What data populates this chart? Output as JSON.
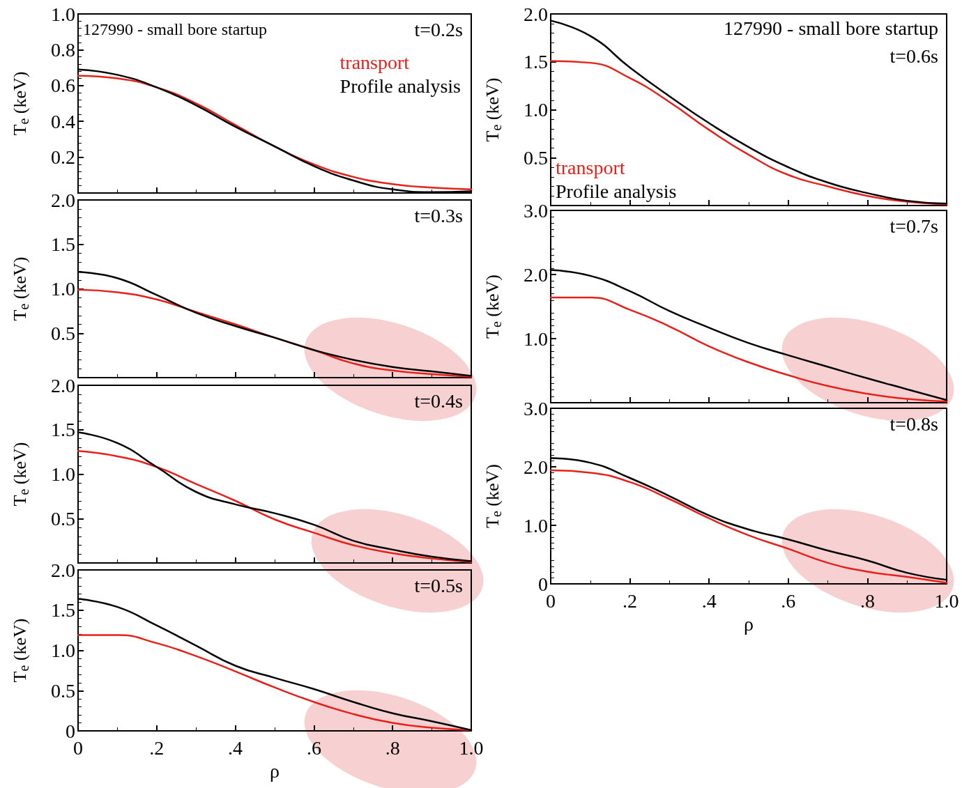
{
  "chart_data": [
    {
      "type": "line",
      "ylabel": "T$_{e}$ (keV)",
      "annotations": [
        "127990 - small bore startup",
        "t=0.2s"
      ],
      "legend": "top right",
      "tick_labels": "y",
      "xlim": [
        0,
        1
      ],
      "ylim": [
        0,
        1
      ],
      "yticks": [
        0.2,
        0.4,
        0.6,
        0.8,
        {
          "value": 1,
          "label": "1.0"
        }
      ],
      "x": [
        0,
        0.1,
        0.2,
        0.3,
        0.4,
        0.5,
        0.6,
        0.7,
        0.8,
        0.9,
        1.0
      ],
      "series": [
        {
          "name": "transport",
          "color": "#e8201a",
          "values": [
            0.655,
            0.64,
            0.59,
            0.5,
            0.38,
            0.26,
            0.16,
            0.09,
            0.05,
            0.03,
            0.02
          ]
        },
        {
          "name": "Profile analysis",
          "color": "#000000",
          "values": [
            0.69,
            0.66,
            0.59,
            0.49,
            0.37,
            0.26,
            0.15,
            0.07,
            0.02,
            0.005,
            0.01
          ]
        }
      ]
    },
    {
      "type": "line",
      "ylabel": "T$_{e}$ (keV)",
      "annotations": [
        "t=0.3s"
      ],
      "tick_labels": "y",
      "xlim": [
        0,
        1
      ],
      "ylim": [
        0,
        2
      ],
      "yticks": [
        0.5,
        {
          "value": 1,
          "label": "1.0"
        },
        1.5,
        {
          "value": 2,
          "label": "2.0"
        }
      ],
      "x": [
        0,
        0.1,
        0.2,
        0.3,
        0.4,
        0.5,
        0.6,
        0.7,
        0.8,
        0.9,
        1.0
      ],
      "series": [
        {
          "color": "#e8201a",
          "values": [
            0.99,
            0.96,
            0.88,
            0.74,
            0.6,
            0.45,
            0.31,
            0.16,
            0.08,
            0.04,
            0.01
          ]
        },
        {
          "color": "#000000",
          "values": [
            1.19,
            1.12,
            0.93,
            0.73,
            0.58,
            0.45,
            0.31,
            0.2,
            0.12,
            0.07,
            0.02
          ]
        }
      ]
    },
    {
      "type": "line",
      "ylabel": "T$_{e}$ (keV)",
      "annotations": [
        "t=0.4s"
      ],
      "tick_labels": "y",
      "xlim": [
        0,
        1
      ],
      "ylim": [
        0,
        2
      ],
      "yticks": [
        0.5,
        {
          "value": 1,
          "label": "1.0"
        },
        1.5,
        {
          "value": 2,
          "label": "2.0"
        }
      ],
      "x": [
        0,
        0.1,
        0.2,
        0.3,
        0.4,
        0.5,
        0.6,
        0.7,
        0.8,
        0.9,
        1.0
      ],
      "series": [
        {
          "color": "#e8201a",
          "values": [
            1.26,
            1.2,
            1.08,
            0.89,
            0.7,
            0.49,
            0.34,
            0.2,
            0.11,
            0.05,
            0.01
          ]
        },
        {
          "color": "#000000",
          "values": [
            1.47,
            1.35,
            1.08,
            0.8,
            0.66,
            0.56,
            0.43,
            0.25,
            0.15,
            0.07,
            0.02
          ]
        }
      ]
    },
    {
      "type": "line",
      "xlabel": "ρ",
      "ylabel": "T$_{e}$ (keV)",
      "annotations": [
        "t=0.5s"
      ],
      "xlim": [
        0,
        1
      ],
      "xticks": [
        0,
        {
          "value": 0.2,
          "label": ".2"
        },
        {
          "value": 0.4,
          "label": ".4"
        },
        {
          "value": 0.6,
          "label": ".6"
        },
        {
          "value": 0.8,
          "label": ".8"
        },
        {
          "value": 1,
          "label": "1.0"
        }
      ],
      "ylim": [
        0,
        2
      ],
      "yticks": [
        0,
        0.5,
        {
          "value": 1,
          "label": "1.0"
        },
        1.5,
        {
          "value": 2,
          "label": "2.0"
        }
      ],
      "x": [
        0,
        0.1,
        0.2,
        0.3,
        0.4,
        0.5,
        0.6,
        0.7,
        0.8,
        0.9,
        1.0
      ],
      "series": [
        {
          "color": "#e8201a",
          "values": [
            1.19,
            1.19,
            1.09,
            0.93,
            0.74,
            0.54,
            0.36,
            0.21,
            0.1,
            0.04,
            0.01
          ]
        },
        {
          "color": "#000000",
          "values": [
            1.64,
            1.54,
            1.31,
            1.06,
            0.81,
            0.66,
            0.52,
            0.36,
            0.22,
            0.12,
            0.01
          ]
        }
      ]
    },
    {
      "type": "line",
      "ylabel": "T$_{e}$ (keV)",
      "annotations": [
        "127990 - small bore startup",
        "t=0.6s"
      ],
      "legend": "bottom left",
      "tick_labels": "y",
      "xlim": [
        0,
        1
      ],
      "ylim": [
        0,
        2
      ],
      "yticks": [
        0.5,
        {
          "value": 1,
          "label": "1.0"
        },
        1.5,
        {
          "value": 2,
          "label": "2.0"
        }
      ],
      "x": [
        0,
        0.1,
        0.2,
        0.3,
        0.4,
        0.5,
        0.6,
        0.7,
        0.8,
        0.9,
        1.0
      ],
      "series": [
        {
          "name": "transport",
          "color": "#e8201a",
          "values": [
            1.51,
            1.49,
            1.33,
            1.08,
            0.79,
            0.53,
            0.32,
            0.2,
            0.1,
            0.04,
            0.01
          ]
        },
        {
          "name": "Profile analysis",
          "color": "#000000",
          "values": [
            1.93,
            1.77,
            1.44,
            1.14,
            0.86,
            0.61,
            0.4,
            0.24,
            0.13,
            0.05,
            0.02
          ]
        }
      ]
    },
    {
      "type": "line",
      "ylabel": "T$_{e}$ (keV)",
      "annotations": [
        "t=0.7s"
      ],
      "tick_labels": "y",
      "xlim": [
        0,
        1
      ],
      "ylim": [
        0,
        3
      ],
      "yticks": [
        {
          "value": 1,
          "label": "1.0"
        },
        {
          "value": 2,
          "label": "2.0"
        },
        {
          "value": 3,
          "label": "3.0"
        }
      ],
      "x": [
        0,
        0.1,
        0.2,
        0.3,
        0.4,
        0.5,
        0.6,
        0.7,
        0.8,
        0.9,
        1.0
      ],
      "series": [
        {
          "color": "#e8201a",
          "values": [
            1.64,
            1.64,
            1.45,
            1.19,
            0.88,
            0.63,
            0.43,
            0.26,
            0.14,
            0.06,
            0.02
          ]
        },
        {
          "color": "#000000",
          "values": [
            2.07,
            1.98,
            1.74,
            1.43,
            1.17,
            0.93,
            0.74,
            0.56,
            0.38,
            0.21,
            0.04
          ]
        }
      ]
    },
    {
      "type": "line",
      "xlabel": "ρ",
      "ylabel": "T$_{e}$ (keV)",
      "annotations": [
        "t=0.8s"
      ],
      "xlim": [
        0,
        1
      ],
      "xticks": [
        0,
        {
          "value": 0.2,
          "label": ".2"
        },
        {
          "value": 0.4,
          "label": ".4"
        },
        {
          "value": 0.6,
          "label": ".6"
        },
        {
          "value": 0.8,
          "label": ".8"
        },
        {
          "value": 1,
          "label": "1.0"
        }
      ],
      "ylim": [
        0,
        3
      ],
      "yticks": [
        0,
        {
          "value": 1,
          "label": "1.0"
        },
        {
          "value": 2,
          "label": "2.0"
        },
        {
          "value": 3,
          "label": "3.0"
        }
      ],
      "x": [
        0,
        0.1,
        0.2,
        0.3,
        0.4,
        0.5,
        0.6,
        0.7,
        0.8,
        0.9,
        1.0
      ],
      "series": [
        {
          "color": "#e8201a",
          "values": [
            1.94,
            1.9,
            1.74,
            1.45,
            1.12,
            0.83,
            0.6,
            0.36,
            0.21,
            0.12,
            0.02
          ]
        },
        {
          "color": "#000000",
          "values": [
            2.15,
            2.07,
            1.81,
            1.5,
            1.17,
            0.93,
            0.76,
            0.57,
            0.4,
            0.19,
            0.07
          ]
        }
      ]
    }
  ]
}
